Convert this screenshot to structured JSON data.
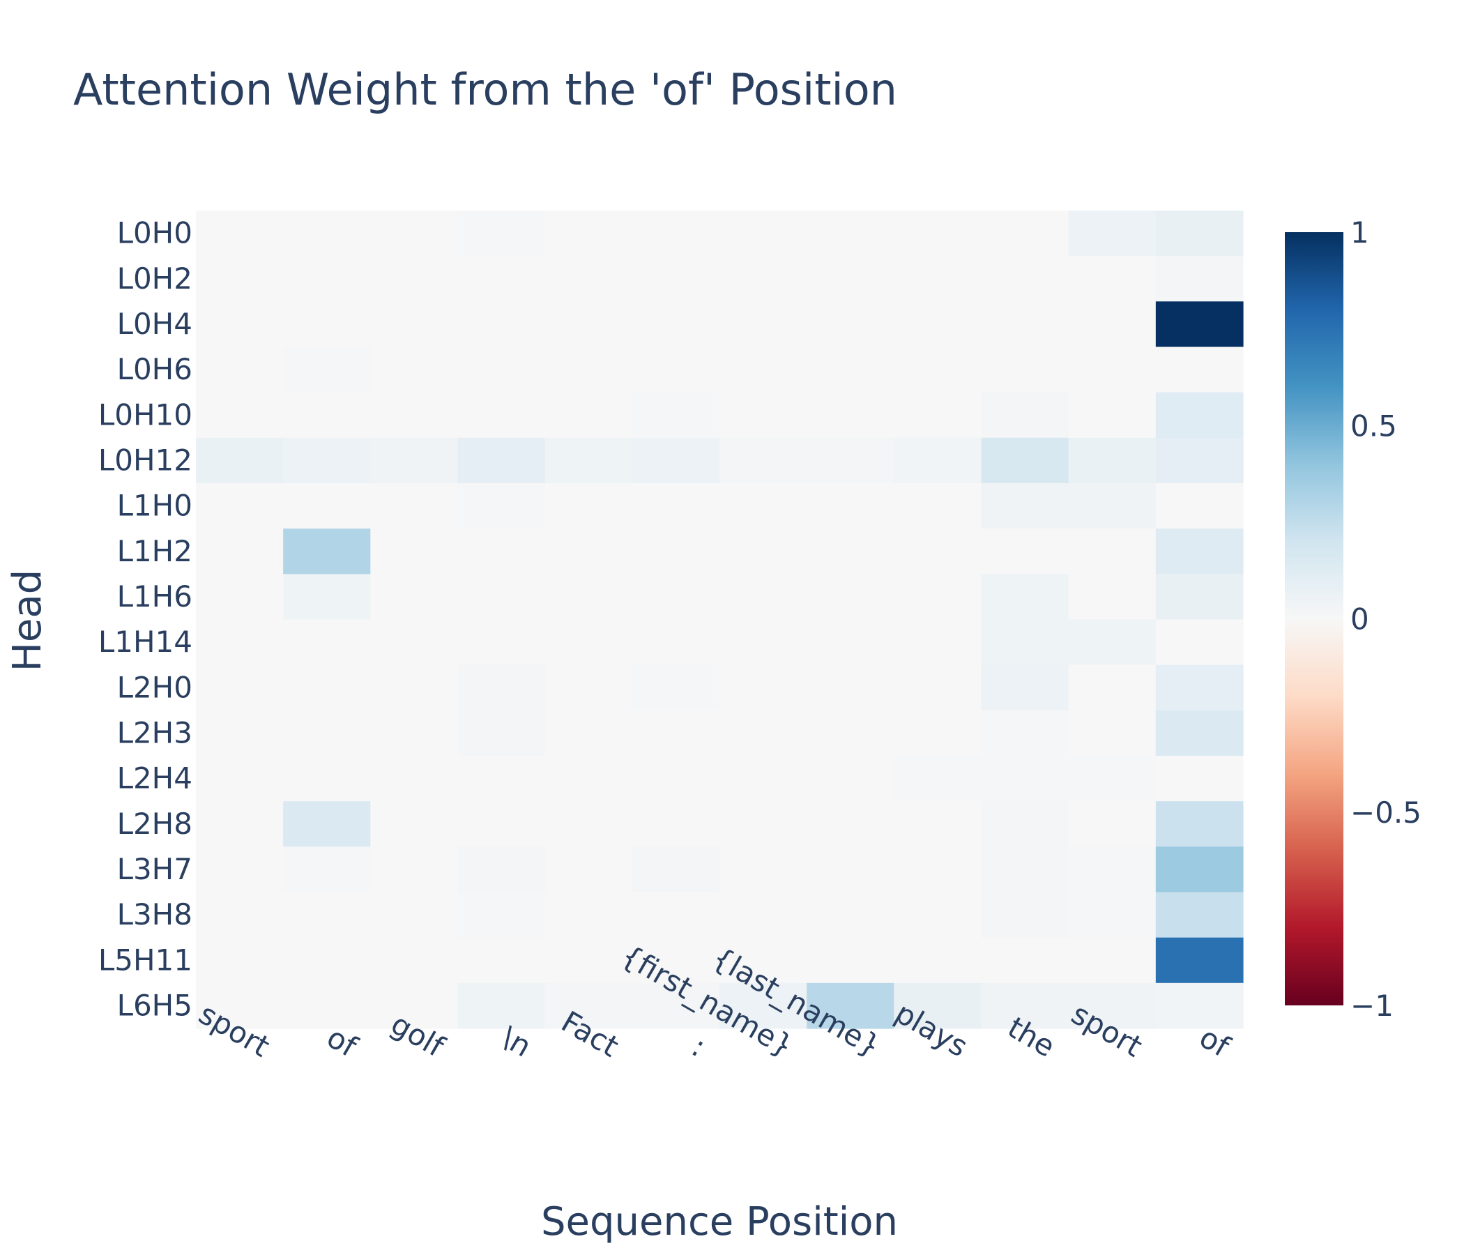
{
  "chart_data": {
    "type": "heatmap",
    "title": "Attention Weight from the 'of' Position",
    "xlabel": "Sequence Position",
    "ylabel": "Head",
    "x": [
      "sport",
      "of",
      "golf",
      "\\n",
      "Fact",
      ":",
      "{first_name}",
      "{last_name}",
      "plays",
      "the",
      "sport",
      "of"
    ],
    "y": [
      "L0H0",
      "L0H2",
      "L0H4",
      "L0H6",
      "L0H10",
      "L0H12",
      "L1H0",
      "L1H2",
      "L1H6",
      "L1H14",
      "L2H0",
      "L2H3",
      "L2H4",
      "L2H8",
      "L3H7",
      "L3H8",
      "L5H11",
      "L6H5"
    ],
    "z": [
      [
        0.0,
        0.0,
        0.0,
        0.01,
        0.0,
        0.0,
        0.0,
        0.0,
        0.0,
        0.0,
        0.06,
        0.08
      ],
      [
        0.0,
        0.0,
        0.0,
        0.0,
        0.0,
        0.0,
        0.0,
        0.0,
        0.0,
        0.0,
        0.0,
        0.02
      ],
      [
        0.0,
        0.0,
        0.0,
        0.0,
        0.0,
        0.0,
        0.0,
        0.0,
        0.0,
        0.0,
        0.0,
        1.0
      ],
      [
        0.0,
        0.01,
        0.0,
        0.0,
        0.0,
        0.0,
        0.0,
        0.0,
        0.0,
        0.0,
        0.0,
        0.0
      ],
      [
        0.0,
        0.0,
        0.0,
        0.0,
        0.0,
        0.01,
        0.0,
        0.0,
        0.0,
        0.02,
        0.0,
        0.12
      ],
      [
        0.07,
        0.06,
        0.04,
        0.1,
        0.05,
        0.06,
        0.02,
        0.02,
        0.03,
        0.17,
        0.07,
        0.1
      ],
      [
        0.0,
        0.0,
        0.0,
        0.01,
        0.0,
        0.0,
        0.0,
        0.0,
        0.0,
        0.04,
        0.04,
        0.0
      ],
      [
        0.0,
        0.3,
        0.0,
        0.0,
        0.0,
        0.0,
        0.0,
        0.0,
        0.0,
        0.0,
        0.0,
        0.13
      ],
      [
        0.0,
        0.05,
        0.0,
        0.0,
        0.0,
        0.0,
        0.0,
        0.0,
        0.0,
        0.05,
        0.0,
        0.08
      ],
      [
        0.0,
        0.0,
        0.0,
        0.0,
        0.0,
        0.0,
        0.0,
        0.0,
        0.0,
        0.05,
        0.05,
        0.0
      ],
      [
        0.0,
        0.0,
        0.0,
        0.02,
        0.0,
        0.01,
        0.0,
        0.0,
        0.0,
        0.06,
        0.0,
        0.1
      ],
      [
        0.0,
        0.0,
        0.0,
        0.02,
        0.0,
        0.0,
        0.0,
        0.0,
        0.0,
        0.01,
        0.0,
        0.15
      ],
      [
        0.0,
        0.0,
        0.0,
        0.0,
        0.0,
        0.0,
        0.0,
        0.0,
        0.01,
        0.01,
        0.01,
        0.0
      ],
      [
        0.0,
        0.15,
        0.0,
        0.0,
        0.0,
        0.0,
        0.0,
        0.0,
        0.0,
        0.02,
        0.0,
        0.22
      ],
      [
        0.0,
        0.01,
        0.0,
        0.02,
        0.0,
        0.02,
        0.0,
        0.0,
        0.0,
        0.02,
        0.01,
        0.37
      ],
      [
        0.0,
        0.0,
        0.0,
        0.01,
        0.0,
        0.0,
        0.0,
        0.0,
        0.0,
        0.02,
        0.01,
        0.23
      ],
      [
        0.0,
        0.0,
        0.0,
        0.0,
        0.0,
        0.0,
        0.0,
        0.0,
        0.0,
        0.0,
        0.0,
        0.75
      ],
      [
        0.0,
        0.0,
        0.0,
        0.05,
        0.02,
        0.02,
        0.06,
        0.28,
        0.08,
        0.04,
        0.04,
        0.03
      ]
    ],
    "zmin": -1,
    "zmax": 1,
    "colorscale": "RdBu",
    "colorbar": {
      "ticks": [
        1,
        0.5,
        0,
        -0.5,
        -1
      ],
      "tick_labels": [
        "1",
        "0.5",
        "0",
        "−0.5",
        "−1"
      ]
    }
  }
}
